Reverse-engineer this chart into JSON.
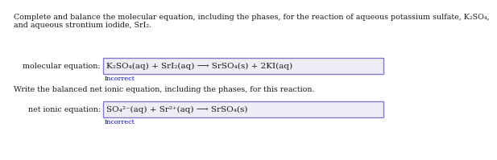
{
  "bg_color": "#ffffff",
  "text_color": "#1a1a1a",
  "incorrect_color": "#0000bb",
  "box_border_color": "#8878cc",
  "box_bg_color": "#ededf5",
  "header_line1": "Complete and balance the molecular equation, including the phases, for the reaction of aqueous potassium sulfate, K₂SO₄,",
  "header_line2": "and aqueous strontium iodide, SrI₂.",
  "mol_label": "molecular equation:",
  "mol_equation": "K₂SO₄(aq) + SrI₂(aq) ⟶ SrSO₄(s) + 2KI(aq)",
  "incorrect1": "Incorrect",
  "write_text": "Write the balanced net ionic equation, including the phases, for this reaction.",
  "net_label": "net ionic equation:",
  "net_equation": "SO₄²⁻(aq) + Sr²⁺(aq) ⟶ SrSO₄(s)",
  "incorrect2": "Incorrect",
  "fontsize_body": 6.8,
  "fontsize_eq": 7.5,
  "fontsize_incorrect": 5.8
}
